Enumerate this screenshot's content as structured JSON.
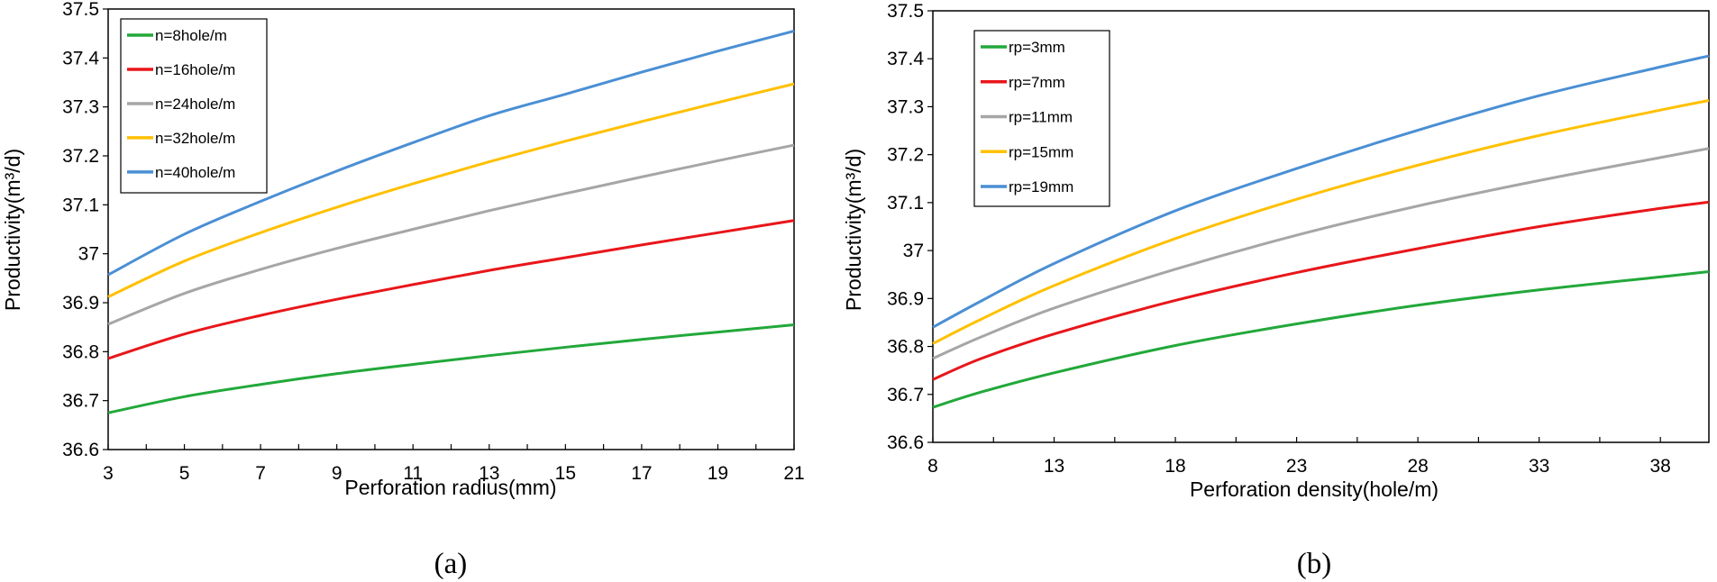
{
  "chart_data": [
    {
      "type": "line",
      "caption": "(a)",
      "xlabel": "Perforation radius(mm)",
      "ylabel": "Productivity(m³/d)",
      "xlim": [
        3,
        21
      ],
      "ylim": [
        36.6,
        37.5
      ],
      "xticks": [
        "3",
        "5",
        "7",
        "9",
        "11",
        "13",
        "15",
        "17",
        "19",
        "21"
      ],
      "yticks": [
        "36.6",
        "36.7",
        "36.8",
        "36.9",
        "37",
        "37.1",
        "37.2",
        "37.3",
        "37.4",
        "37.5"
      ],
      "legend_position": "top-left",
      "x": [
        3,
        5,
        7,
        9,
        11,
        13,
        15,
        17,
        19,
        21
      ],
      "series": [
        {
          "name": "n=8hole/m",
          "color": "#22a83a",
          "values": [
            36.675,
            36.708,
            36.733,
            36.755,
            36.774,
            36.792,
            36.809,
            36.825,
            36.84,
            36.855
          ]
        },
        {
          "name": "n=16hole/m",
          "color": "#e8161a",
          "values": [
            36.786,
            36.836,
            36.874,
            36.907,
            36.937,
            36.966,
            36.992,
            37.018,
            37.043,
            37.068
          ]
        },
        {
          "name": "n=24hole/m",
          "color": "#a6a6a6",
          "values": [
            36.856,
            36.919,
            36.968,
            37.011,
            37.05,
            37.088,
            37.123,
            37.157,
            37.19,
            37.222
          ]
        },
        {
          "name": "n=32hole/m",
          "color": "#ffc000",
          "values": [
            36.912,
            36.985,
            37.043,
            37.095,
            37.143,
            37.188,
            37.23,
            37.27,
            37.309,
            37.347
          ]
        },
        {
          "name": "n=40hole/m",
          "color": "#4a8fd4",
          "values": [
            36.957,
            37.04,
            37.107,
            37.169,
            37.227,
            37.282,
            37.326,
            37.371,
            37.414,
            37.455
          ]
        }
      ]
    },
    {
      "type": "line",
      "caption": "(b)",
      "xlabel": "Perforation density(hole/m)",
      "ylabel": "Productivity(m³/d)",
      "xlim": [
        8,
        40
      ],
      "ylim": [
        36.6,
        37.5
      ],
      "xticks": [
        "8",
        "13",
        "18",
        "23",
        "28",
        "33",
        "38"
      ],
      "xtick_values": [
        8,
        13,
        18,
        23,
        28,
        33,
        38
      ],
      "yticks": [
        "36.6",
        "36.7",
        "36.8",
        "36.9",
        "37",
        "37.1",
        "37.2",
        "37.3",
        "37.4",
        "37.5"
      ],
      "legend_position": "top-left",
      "x": [
        8,
        10,
        13,
        18,
        23,
        28,
        33,
        38,
        40
      ],
      "series": [
        {
          "name": "rp=3mm",
          "color": "#22a83a",
          "values": [
            36.673,
            36.705,
            36.745,
            36.802,
            36.847,
            36.886,
            36.918,
            36.945,
            36.956
          ]
        },
        {
          "name": "rp=7mm",
          "color": "#e8161a",
          "values": [
            36.731,
            36.775,
            36.826,
            36.896,
            36.954,
            37.004,
            37.05,
            37.088,
            37.101
          ]
        },
        {
          "name": "rp=11mm",
          "color": "#a6a6a6",
          "values": [
            36.775,
            36.82,
            36.88,
            36.961,
            37.032,
            37.093,
            37.146,
            37.194,
            37.213
          ]
        },
        {
          "name": "rp=15mm",
          "color": "#ffc000",
          "values": [
            36.806,
            36.857,
            36.927,
            37.025,
            37.107,
            37.178,
            37.24,
            37.293,
            37.313
          ]
        },
        {
          "name": "rp=19mm",
          "color": "#4a8fd4",
          "values": [
            36.84,
            36.895,
            36.973,
            37.083,
            37.171,
            37.251,
            37.323,
            37.383,
            37.406
          ]
        }
      ]
    }
  ]
}
